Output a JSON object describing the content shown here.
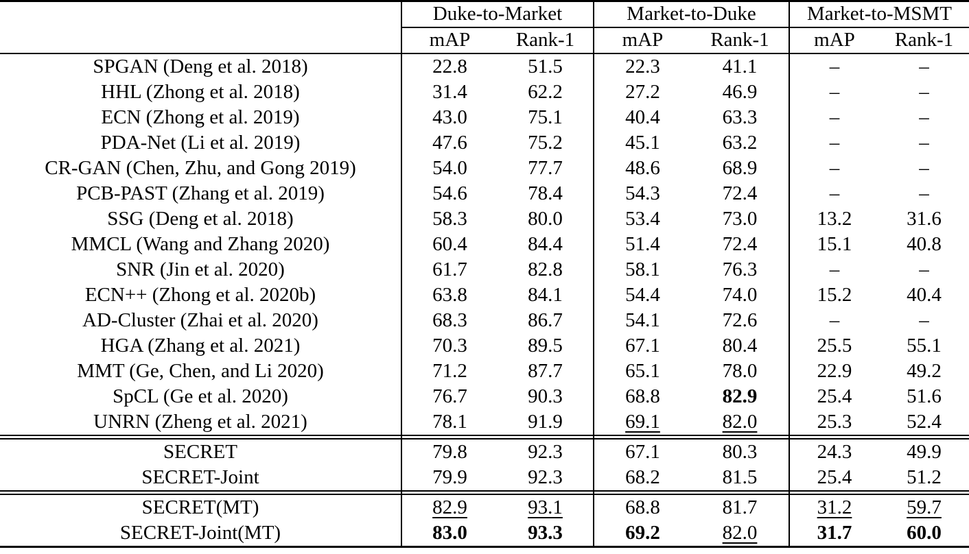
{
  "colors": {
    "background": "#ffffff",
    "text": "#000000",
    "rules": "#000000"
  },
  "table": {
    "groups": [
      {
        "label": "Duke-to-Market"
      },
      {
        "label": "Market-to-Duke"
      },
      {
        "label": "Market-to-MSMT"
      }
    ],
    "sub_headers": [
      "mAP",
      "Rank-1",
      "mAP",
      "Rank-1",
      "mAP",
      "Rank-1"
    ],
    "missing_marker": "–",
    "style_legend": {
      "b": "bold (best result)",
      "u": "underline (second-best result)",
      "": "plain"
    },
    "sections": [
      {
        "name": "prior-methods",
        "rows": [
          {
            "method": "SPGAN (Deng et al. 2018)",
            "values": [
              "22.8",
              "51.5",
              "22.3",
              "41.1",
              "–",
              "–"
            ],
            "styles": [
              "",
              "",
              "",
              "",
              "",
              ""
            ]
          },
          {
            "method": "HHL (Zhong et al. 2018)",
            "values": [
              "31.4",
              "62.2",
              "27.2",
              "46.9",
              "–",
              "–"
            ],
            "styles": [
              "",
              "",
              "",
              "",
              "",
              ""
            ]
          },
          {
            "method": "ECN (Zhong et al. 2019)",
            "values": [
              "43.0",
              "75.1",
              "40.4",
              "63.3",
              "–",
              "–"
            ],
            "styles": [
              "",
              "",
              "",
              "",
              "",
              ""
            ]
          },
          {
            "method": "PDA-Net (Li et al. 2019)",
            "values": [
              "47.6",
              "75.2",
              "45.1",
              "63.2",
              "–",
              "–"
            ],
            "styles": [
              "",
              "",
              "",
              "",
              "",
              ""
            ]
          },
          {
            "method": "CR-GAN (Chen, Zhu, and Gong 2019)",
            "values": [
              "54.0",
              "77.7",
              "48.6",
              "68.9",
              "–",
              "–"
            ],
            "styles": [
              "",
              "",
              "",
              "",
              "",
              ""
            ]
          },
          {
            "method": "PCB-PAST (Zhang et al. 2019)",
            "values": [
              "54.6",
              "78.4",
              "54.3",
              "72.4",
              "–",
              "–"
            ],
            "styles": [
              "",
              "",
              "",
              "",
              "",
              ""
            ]
          },
          {
            "method": "SSG (Deng et al. 2018)",
            "values": [
              "58.3",
              "80.0",
              "53.4",
              "73.0",
              "13.2",
              "31.6"
            ],
            "styles": [
              "",
              "",
              "",
              "",
              "",
              ""
            ]
          },
          {
            "method": "MMCL (Wang and Zhang 2020)",
            "values": [
              "60.4",
              "84.4",
              "51.4",
              "72.4",
              "15.1",
              "40.8"
            ],
            "styles": [
              "",
              "",
              "",
              "",
              "",
              ""
            ]
          },
          {
            "method": "SNR (Jin et al. 2020)",
            "values": [
              "61.7",
              "82.8",
              "58.1",
              "76.3",
              "–",
              "–"
            ],
            "styles": [
              "",
              "",
              "",
              "",
              "",
              ""
            ]
          },
          {
            "method": "ECN++ (Zhong et al. 2020b)",
            "values": [
              "63.8",
              "84.1",
              "54.4",
              "74.0",
              "15.2",
              "40.4"
            ],
            "styles": [
              "",
              "",
              "",
              "",
              "",
              ""
            ]
          },
          {
            "method": "AD-Cluster (Zhai et al. 2020)",
            "values": [
              "68.3",
              "86.7",
              "54.1",
              "72.6",
              "–",
              "–"
            ],
            "styles": [
              "",
              "",
              "",
              "",
              "",
              ""
            ]
          },
          {
            "method": "HGA (Zhang et al. 2021)",
            "values": [
              "70.3",
              "89.5",
              "67.1",
              "80.4",
              "25.5",
              "55.1"
            ],
            "styles": [
              "",
              "",
              "",
              "",
              "",
              ""
            ]
          },
          {
            "method": "MMT (Ge, Chen, and Li 2020)",
            "values": [
              "71.2",
              "87.7",
              "65.1",
              "78.0",
              "22.9",
              "49.2"
            ],
            "styles": [
              "",
              "",
              "",
              "",
              "",
              ""
            ]
          },
          {
            "method": "SpCL (Ge et al. 2020)",
            "values": [
              "76.7",
              "90.3",
              "68.8",
              "82.9",
              "25.4",
              "51.6"
            ],
            "styles": [
              "",
              "",
              "",
              "b",
              "",
              ""
            ]
          },
          {
            "method": "UNRN (Zheng et al. 2021)",
            "values": [
              "78.1",
              "91.9",
              "69.1",
              "82.0",
              "25.3",
              "52.4"
            ],
            "styles": [
              "",
              "",
              "u",
              "u",
              "",
              ""
            ]
          }
        ]
      },
      {
        "name": "secret-base",
        "rows": [
          {
            "method": "SECRET",
            "values": [
              "79.8",
              "92.3",
              "67.1",
              "80.3",
              "24.3",
              "49.9"
            ],
            "styles": [
              "",
              "",
              "",
              "",
              "",
              ""
            ]
          },
          {
            "method": "SECRET-Joint",
            "values": [
              "79.9",
              "92.3",
              "68.2",
              "81.5",
              "25.4",
              "51.2"
            ],
            "styles": [
              "",
              "",
              "",
              "",
              "",
              ""
            ]
          }
        ]
      },
      {
        "name": "secret-mt",
        "rows": [
          {
            "method": "SECRET(MT)",
            "values": [
              "82.9",
              "93.1",
              "68.8",
              "81.7",
              "31.2",
              "59.7"
            ],
            "styles": [
              "u",
              "u",
              "",
              "",
              "u",
              "u"
            ]
          },
          {
            "method": "SECRET-Joint(MT)",
            "values": [
              "83.0",
              "93.3",
              "69.2",
              "82.0",
              "31.7",
              "60.0"
            ],
            "styles": [
              "b",
              "b",
              "b",
              "u",
              "b",
              "b"
            ]
          }
        ]
      }
    ]
  }
}
